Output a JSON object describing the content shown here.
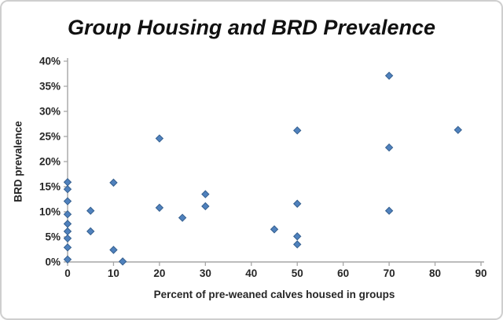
{
  "chart_data": {
    "type": "scatter",
    "title": "Group Housing and BRD Prevalence",
    "xlabel": "Percent of pre-weaned calves housed in groups",
    "ylabel": "BRD prevalence",
    "xlim": [
      0,
      90
    ],
    "ylim": [
      0,
      40
    ],
    "x_ticks": [
      0,
      10,
      20,
      30,
      40,
      50,
      60,
      70,
      80,
      90
    ],
    "y_tick_values": [
      0,
      5,
      10,
      15,
      20,
      25,
      30,
      35,
      40
    ],
    "y_ticks": [
      "0%",
      "5%",
      "10%",
      "15%",
      "20%",
      "25%",
      "30%",
      "35%",
      "40%"
    ],
    "grid": false,
    "legend": null,
    "axis_color": "#a6a6a6",
    "marker": {
      "shape": "diamond",
      "fill": "#4f81bd",
      "stroke": "#36608f",
      "size": 9
    },
    "points": [
      [
        0,
        15.9
      ],
      [
        0,
        14.5
      ],
      [
        0,
        12.1
      ],
      [
        0,
        9.5
      ],
      [
        0,
        7.6
      ],
      [
        0,
        6.1
      ],
      [
        0,
        4.7
      ],
      [
        0,
        2.9
      ],
      [
        0,
        0.5
      ],
      [
        5,
        10.2
      ],
      [
        5,
        6.1
      ],
      [
        10,
        15.8
      ],
      [
        10,
        2.4
      ],
      [
        12,
        0.1
      ],
      [
        20,
        24.6
      ],
      [
        20,
        10.8
      ],
      [
        25,
        8.8
      ],
      [
        30,
        13.5
      ],
      [
        30,
        11.1
      ],
      [
        45,
        6.5
      ],
      [
        50,
        26.2
      ],
      [
        50,
        11.6
      ],
      [
        50,
        5.1
      ],
      [
        50,
        3.5
      ],
      [
        70,
        37.1
      ],
      [
        70,
        22.8
      ],
      [
        70,
        10.2
      ],
      [
        85,
        26.3
      ]
    ]
  }
}
